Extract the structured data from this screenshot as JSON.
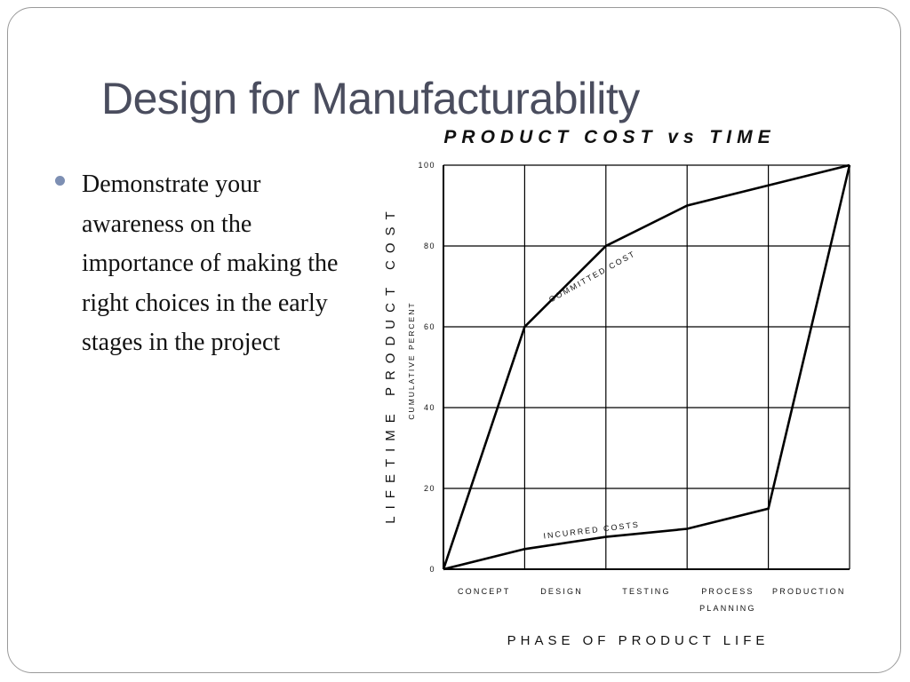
{
  "slide": {
    "title": "Design for Manufacturability",
    "bullets": [
      "Demonstrate your awareness on the importance of making the right choices in the early stages in the project"
    ]
  },
  "chart_data": {
    "type": "line",
    "title": "PRODUCT COST vs TIME",
    "xlabel": "PHASE OF PRODUCT LIFE",
    "ylabel": "LIFETIME PRODUCT COST",
    "ylabel_secondary": "CUMULATIVE PERCENT",
    "ylim": [
      0,
      100
    ],
    "yticks": [
      "0",
      "20",
      "40",
      "60",
      "80",
      "100"
    ],
    "grid": true,
    "categories": [
      "CONCEPT",
      "DESIGN",
      "TESTING",
      "PROCESS PLANNING",
      "PRODUCTION"
    ],
    "x_boundaries": [
      0,
      1,
      2,
      3,
      4,
      5
    ],
    "series": [
      {
        "name": "COMMITTED COST",
        "x": [
          0,
          1,
          2,
          3,
          4,
          5
        ],
        "y": [
          0,
          60,
          80,
          90,
          95,
          100
        ]
      },
      {
        "name": "INCURRED COSTS",
        "x": [
          0,
          1,
          2,
          3,
          4,
          5
        ],
        "y": [
          0,
          5,
          8,
          10,
          15,
          100
        ]
      }
    ],
    "line_color": "#000000",
    "grid_color": "#000000"
  }
}
